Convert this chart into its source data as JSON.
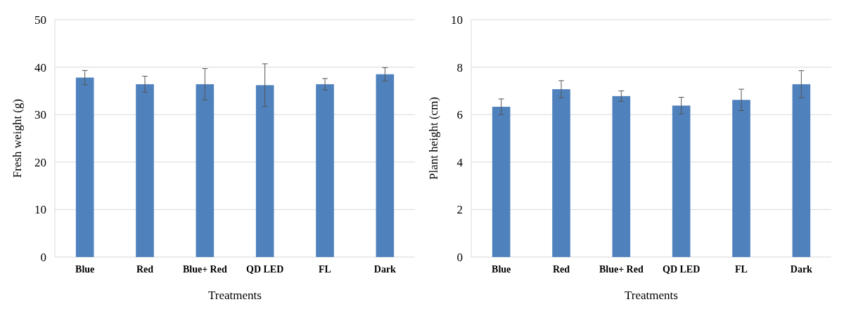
{
  "chart_data": [
    {
      "type": "bar",
      "xlabel": "Treatments",
      "ylabel": "Fresh weight (g)",
      "categories": [
        "Blue",
        "Red",
        "Blue+ Red",
        "QD LED",
        "FL",
        "Dark"
      ],
      "values": [
        37.8,
        36.4,
        36.4,
        36.2,
        36.4,
        38.5
      ],
      "errors": [
        1.5,
        1.7,
        3.3,
        4.5,
        1.2,
        1.4
      ],
      "color": "#4f81bd",
      "ylim": [
        0,
        50
      ],
      "yticks": [
        0,
        10,
        20,
        30,
        40,
        50
      ],
      "grid": "y"
    },
    {
      "type": "bar",
      "xlabel": "Treatments",
      "ylabel": "Plant height (cm)",
      "categories": [
        "Blue",
        "Red",
        "Blue+ Red",
        "QD LED",
        "FL",
        "Dark"
      ],
      "values": [
        6.33,
        7.07,
        6.78,
        6.38,
        6.62,
        7.28
      ],
      "errors": [
        0.33,
        0.36,
        0.22,
        0.35,
        0.45,
        0.57
      ],
      "color": "#4f81bd",
      "ylim": [
        0,
        10
      ],
      "yticks": [
        0,
        2,
        4,
        6,
        8,
        10
      ],
      "grid": "y"
    }
  ]
}
